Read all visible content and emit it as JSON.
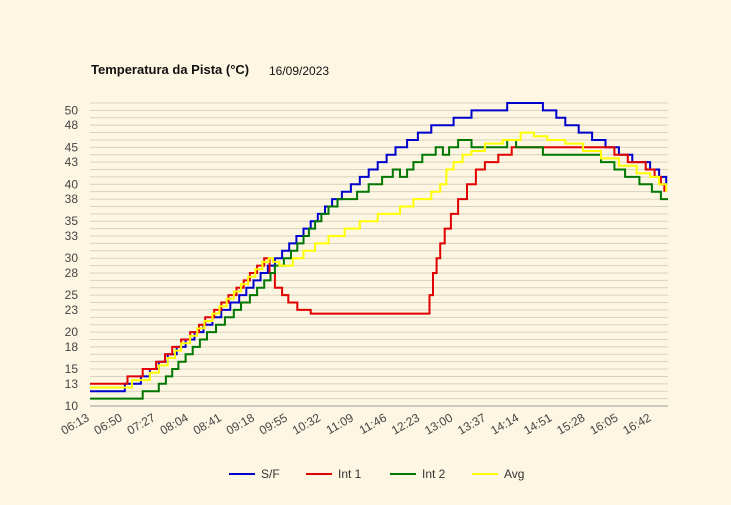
{
  "chart_data": {
    "type": "line",
    "title": "Temperatura da Pista (°C)",
    "subtitle": "16/09/2023",
    "xlabel": "",
    "ylabel": "",
    "x_ticks": [
      "06:13",
      "06:50",
      "07:27",
      "08:04",
      "08:41",
      "09:18",
      "09:55",
      "10:32",
      "11:09",
      "11:46",
      "12:23",
      "13:00",
      "13:37",
      "14:14",
      "14:51",
      "15:28",
      "16:05",
      "16:42"
    ],
    "y_ticks": [
      "10",
      "13",
      "15",
      "18",
      "20",
      "23",
      "25",
      "28",
      "30",
      "33",
      "35",
      "38",
      "40",
      "43",
      "45",
      "48",
      "50"
    ],
    "ylim": [
      10,
      51
    ],
    "xlim": [
      "06:13",
      "17:00"
    ],
    "grid": true,
    "legend_position": "bottom",
    "series": [
      {
        "name": "S/F",
        "color": "#0000cc",
        "points": [
          [
            "06:13",
            12
          ],
          [
            "06:50",
            12
          ],
          [
            "06:52",
            13
          ],
          [
            "07:05",
            13
          ],
          [
            "07:10",
            14
          ],
          [
            "07:20",
            15
          ],
          [
            "07:30",
            16
          ],
          [
            "07:40",
            17
          ],
          [
            "07:50",
            18
          ],
          [
            "08:00",
            19
          ],
          [
            "08:10",
            20
          ],
          [
            "08:20",
            21
          ],
          [
            "08:30",
            22
          ],
          [
            "08:40",
            23
          ],
          [
            "08:50",
            24
          ],
          [
            "09:00",
            25
          ],
          [
            "09:08",
            26
          ],
          [
            "09:16",
            27
          ],
          [
            "09:24",
            28
          ],
          [
            "09:32",
            29
          ],
          [
            "09:40",
            30
          ],
          [
            "09:48",
            31
          ],
          [
            "09:56",
            32
          ],
          [
            "10:04",
            33
          ],
          [
            "10:12",
            34
          ],
          [
            "10:20",
            35
          ],
          [
            "10:28",
            36
          ],
          [
            "10:36",
            37
          ],
          [
            "10:44",
            38
          ],
          [
            "10:55",
            39
          ],
          [
            "11:05",
            40
          ],
          [
            "11:15",
            41
          ],
          [
            "11:25",
            42
          ],
          [
            "11:35",
            43
          ],
          [
            "11:45",
            44
          ],
          [
            "11:55",
            45
          ],
          [
            "12:08",
            46
          ],
          [
            "12:20",
            47
          ],
          [
            "12:35",
            48
          ],
          [
            "13:00",
            49
          ],
          [
            "13:20",
            50
          ],
          [
            "14:00",
            51
          ],
          [
            "14:35",
            51
          ],
          [
            "14:40",
            50
          ],
          [
            "14:55",
            49
          ],
          [
            "15:05",
            48
          ],
          [
            "15:20",
            47
          ],
          [
            "15:35",
            46
          ],
          [
            "15:50",
            45
          ],
          [
            "16:05",
            44
          ],
          [
            "16:20",
            43
          ],
          [
            "16:40",
            42
          ],
          [
            "16:50",
            41
          ],
          [
            "16:58",
            40
          ]
        ]
      },
      {
        "name": "Int 1",
        "color": "#e00000",
        "points": [
          [
            "06:13",
            13
          ],
          [
            "06:52",
            13
          ],
          [
            "06:55",
            14
          ],
          [
            "07:08",
            14
          ],
          [
            "07:12",
            15
          ],
          [
            "07:27",
            16
          ],
          [
            "07:37",
            17
          ],
          [
            "07:45",
            18
          ],
          [
            "07:55",
            19
          ],
          [
            "08:05",
            20
          ],
          [
            "08:15",
            21
          ],
          [
            "08:22",
            22
          ],
          [
            "08:32",
            23
          ],
          [
            "08:40",
            24
          ],
          [
            "08:48",
            25
          ],
          [
            "08:57",
            26
          ],
          [
            "09:05",
            27
          ],
          [
            "09:12",
            28
          ],
          [
            "09:20",
            29
          ],
          [
            "09:28",
            30
          ],
          [
            "09:34",
            28
          ],
          [
            "09:40",
            26
          ],
          [
            "09:48",
            25
          ],
          [
            "09:55",
            24
          ],
          [
            "10:05",
            23
          ],
          [
            "10:20",
            22.5
          ],
          [
            "12:30",
            22.5
          ],
          [
            "12:33",
            25
          ],
          [
            "12:37",
            28
          ],
          [
            "12:41",
            30
          ],
          [
            "12:45",
            32
          ],
          [
            "12:50",
            34
          ],
          [
            "12:57",
            36
          ],
          [
            "13:05",
            38
          ],
          [
            "13:15",
            40
          ],
          [
            "13:25",
            42
          ],
          [
            "13:35",
            43
          ],
          [
            "13:50",
            44
          ],
          [
            "14:05",
            45
          ],
          [
            "14:35",
            45
          ],
          [
            "15:50",
            45
          ],
          [
            "16:00",
            44
          ],
          [
            "16:15",
            43
          ],
          [
            "16:35",
            42
          ],
          [
            "16:45",
            41
          ],
          [
            "16:52",
            40
          ],
          [
            "16:56",
            39
          ]
        ]
      },
      {
        "name": "Int 2",
        "color": "#007700",
        "points": [
          [
            "06:13",
            11
          ],
          [
            "07:10",
            11
          ],
          [
            "07:12",
            12
          ],
          [
            "07:25",
            12
          ],
          [
            "07:30",
            13
          ],
          [
            "07:38",
            14
          ],
          [
            "07:45",
            15
          ],
          [
            "07:52",
            16
          ],
          [
            "08:00",
            17
          ],
          [
            "08:08",
            18
          ],
          [
            "08:16",
            19
          ],
          [
            "08:24",
            20
          ],
          [
            "08:34",
            21
          ],
          [
            "08:44",
            22
          ],
          [
            "08:54",
            23
          ],
          [
            "09:02",
            24
          ],
          [
            "09:12",
            25
          ],
          [
            "09:20",
            26
          ],
          [
            "09:28",
            27
          ],
          [
            "09:35",
            28
          ],
          [
            "09:40",
            29
          ],
          [
            "09:50",
            30
          ],
          [
            "09:58",
            31
          ],
          [
            "10:05",
            32
          ],
          [
            "10:12",
            33
          ],
          [
            "10:18",
            34
          ],
          [
            "10:25",
            35
          ],
          [
            "10:32",
            36
          ],
          [
            "10:40",
            37
          ],
          [
            "10:50",
            38
          ],
          [
            "11:12",
            39
          ],
          [
            "11:25",
            40
          ],
          [
            "11:40",
            41
          ],
          [
            "11:52",
            42
          ],
          [
            "12:00",
            41
          ],
          [
            "12:08",
            42
          ],
          [
            "12:15",
            43
          ],
          [
            "12:25",
            44
          ],
          [
            "12:40",
            45
          ],
          [
            "12:48",
            44
          ],
          [
            "12:55",
            45
          ],
          [
            "13:05",
            46
          ],
          [
            "13:20",
            45
          ],
          [
            "13:40",
            45
          ],
          [
            "14:00",
            46
          ],
          [
            "14:10",
            45
          ],
          [
            "14:30",
            45
          ],
          [
            "14:40",
            44
          ],
          [
            "15:30",
            44
          ],
          [
            "15:45",
            43
          ],
          [
            "16:00",
            42
          ],
          [
            "16:12",
            41
          ],
          [
            "16:28",
            40
          ],
          [
            "16:42",
            39
          ],
          [
            "16:52",
            38
          ],
          [
            "17:00",
            38
          ]
        ]
      },
      {
        "name": "Avg",
        "color": "#ffff00",
        "points": [
          [
            "06:13",
            12.5
          ],
          [
            "06:55",
            12.5
          ],
          [
            "07:00",
            13.5
          ],
          [
            "07:20",
            14.5
          ],
          [
            "07:30",
            15.5
          ],
          [
            "07:40",
            16.5
          ],
          [
            "07:48",
            17.5
          ],
          [
            "07:55",
            18.5
          ],
          [
            "08:05",
            19.5
          ],
          [
            "08:13",
            20.5
          ],
          [
            "08:21",
            21.5
          ],
          [
            "08:30",
            22.5
          ],
          [
            "08:38",
            23.5
          ],
          [
            "08:46",
            24.5
          ],
          [
            "08:54",
            25.5
          ],
          [
            "09:02",
            26.5
          ],
          [
            "09:10",
            27.5
          ],
          [
            "09:18",
            28.5
          ],
          [
            "09:26",
            29.5
          ],
          [
            "09:33",
            30
          ],
          [
            "09:38",
            29.5
          ],
          [
            "09:45",
            29
          ],
          [
            "10:00",
            30
          ],
          [
            "10:12",
            31
          ],
          [
            "10:25",
            32
          ],
          [
            "10:40",
            33
          ],
          [
            "10:58",
            34
          ],
          [
            "11:15",
            35
          ],
          [
            "11:35",
            36
          ],
          [
            "12:00",
            37
          ],
          [
            "12:15",
            38
          ],
          [
            "12:35",
            39
          ],
          [
            "12:45",
            40
          ],
          [
            "12:52",
            42
          ],
          [
            "13:00",
            43
          ],
          [
            "13:10",
            44
          ],
          [
            "13:20",
            44.5
          ],
          [
            "13:35",
            45.5
          ],
          [
            "13:55",
            46
          ],
          [
            "14:15",
            47
          ],
          [
            "14:30",
            46.5
          ],
          [
            "14:45",
            46
          ],
          [
            "15:05",
            45.5
          ],
          [
            "15:25",
            44.5
          ],
          [
            "15:45",
            43.5
          ],
          [
            "16:05",
            42.5
          ],
          [
            "16:25",
            41.5
          ],
          [
            "16:40",
            41
          ],
          [
            "16:50",
            40
          ],
          [
            "16:58",
            39
          ]
        ]
      }
    ]
  }
}
